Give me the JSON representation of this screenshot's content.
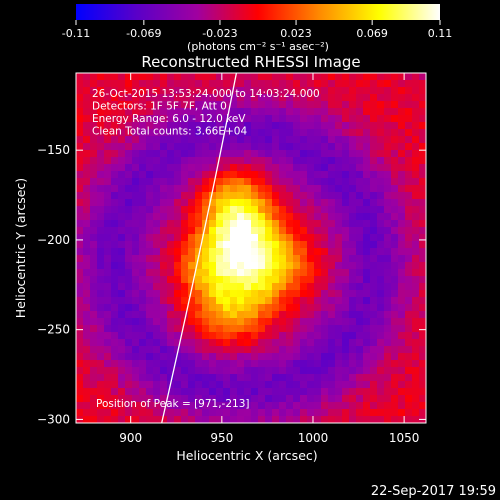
{
  "chart_data": {
    "type": "heatmap",
    "title": "Reconstructed RHESSI Image",
    "colorbar": {
      "min": -0.11,
      "max": 0.11,
      "ticks": [
        "-0.11",
        "-0.069",
        "-0.023",
        "0.023",
        "0.069",
        "0.11"
      ],
      "unit_label": "(photons cm⁻² s⁻¹ asec⁻²)"
    },
    "xlabel": "Heliocentric X (arcsec)",
    "ylabel": "Heliocentric Y (arcsec)",
    "xlim": [
      870,
      1062
    ],
    "ylim": [
      -302,
      -107
    ],
    "xticks": [
      900,
      950,
      1000,
      1050
    ],
    "yticks": [
      -150,
      -200,
      -250,
      -300
    ],
    "info_lines": [
      "26-Oct-2015 13:53:24.000 to 14:03:24.000",
      "Detectors: 1F 5F 7F, Att 0",
      "Energy Range: 6.0 - 12.0 keV",
      "Clean     Total counts: 3.66E+04"
    ],
    "peak_label": "Position of Peak = [971,-213]",
    "peak": {
      "x": 971,
      "y": -213
    },
    "sources": [
      {
        "x": 958,
        "y": -187,
        "sx": 14,
        "sy": 17,
        "amp": 0.11
      },
      {
        "x": 970,
        "y": -213,
        "sx": 20,
        "sy": 15,
        "amp": 0.105
      },
      {
        "x": 955,
        "y": -240,
        "sx": 16,
        "sy": 13,
        "amp": 0.07
      },
      {
        "x": 940,
        "y": -215,
        "sx": 12,
        "sy": 12,
        "amp": 0.04
      }
    ],
    "limb_curve": [
      [
        958,
        -107
      ],
      [
        940,
        -200
      ],
      [
        917,
        -302
      ]
    ],
    "colormap": [
      "#0000ff",
      "#5a00c8",
      "#a000a0",
      "#ff0000",
      "#ff8800",
      "#ffff00",
      "#ffffff"
    ]
  },
  "footer": {
    "timestamp": "22-Sep-2017 19:59"
  }
}
